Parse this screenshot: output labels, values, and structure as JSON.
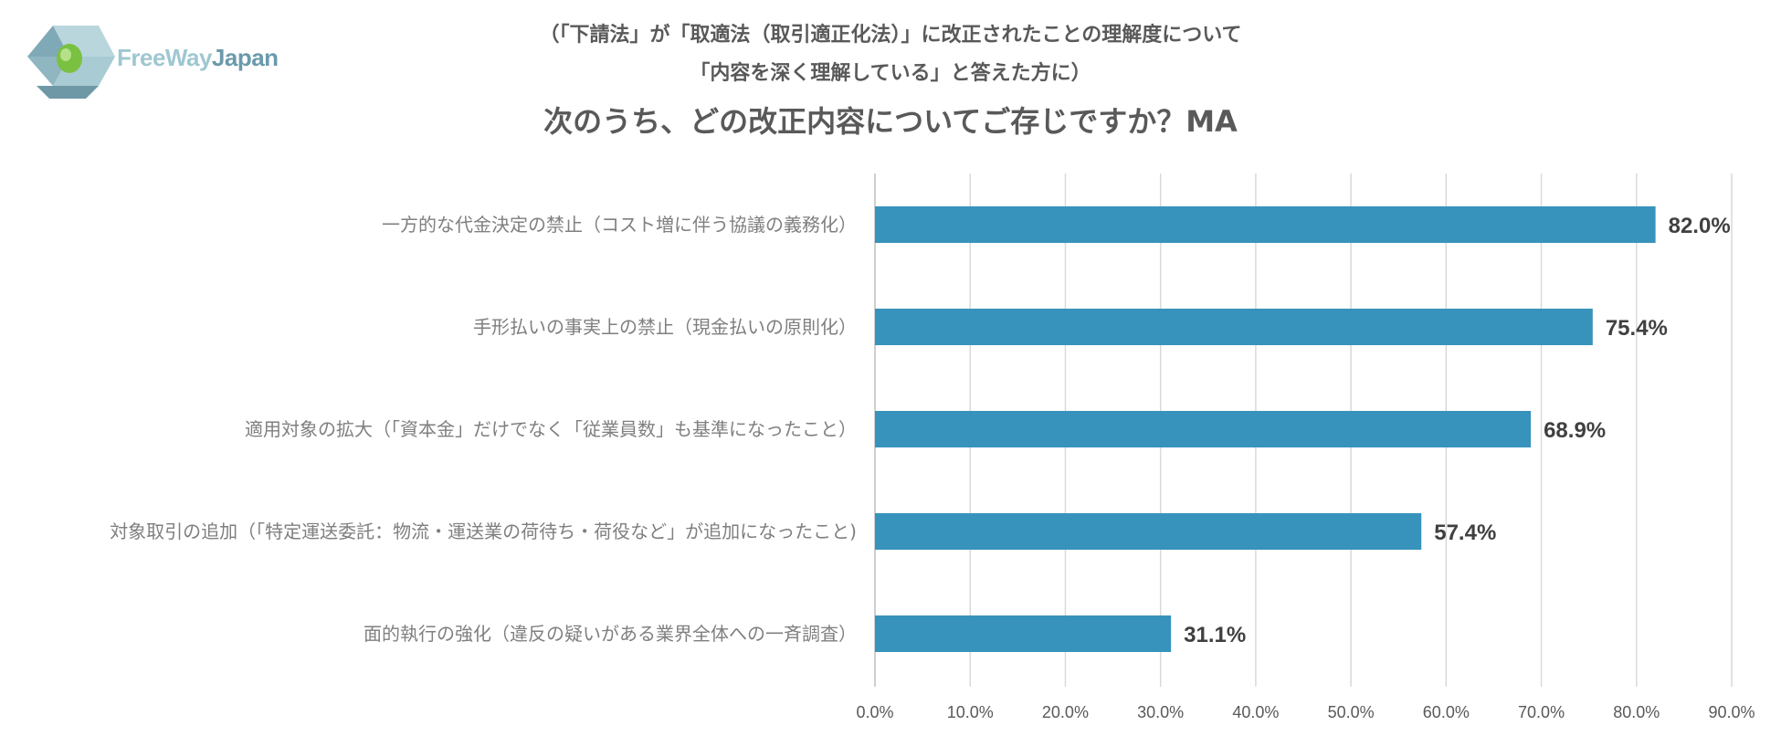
{
  "logo": {
    "text_part1": "FreeWay",
    "text_part2": "Japan",
    "colors": {
      "light": "#9fc7d1",
      "dark": "#6a9aab",
      "green": "#7ac142"
    }
  },
  "chart_data": {
    "type": "bar",
    "orientation": "horizontal",
    "title_line1": "（「下請法」が「取適法（取引適正化法）」に改正されたことの理解度について",
    "title_line2": "「内容を深く理解している」と答えた方に）",
    "title_main": "次のうち、どの改正内容についてご存じですか？MA",
    "categories": [
      "一方的な代金決定の禁止（コスト増に伴う協議の義務化）",
      "手形払いの事実上の禁止（現金払いの原則化）",
      "適用対象の拡大（「資本金」だけでなく「従業員数」も基準になったこと）",
      "対象取引の追加（「特定運送委託：物流・運送業の荷待ち・荷役など」が追加になったこと)",
      "面的執行の強化（違反の疑いがある業界全体への一斉調査）"
    ],
    "values": [
      82.0,
      75.4,
      68.9,
      57.4,
      31.1
    ],
    "value_labels": [
      "82.0%",
      "75.4%",
      "68.9%",
      "57.4%",
      "31.1%"
    ],
    "xlim": [
      0,
      90
    ],
    "xticks": [
      "0.0%",
      "10.0%",
      "20.0%",
      "30.0%",
      "40.0%",
      "50.0%",
      "60.0%",
      "70.0%",
      "80.0%",
      "90.0%"
    ],
    "grid": true,
    "bar_color": "#3893bc"
  }
}
